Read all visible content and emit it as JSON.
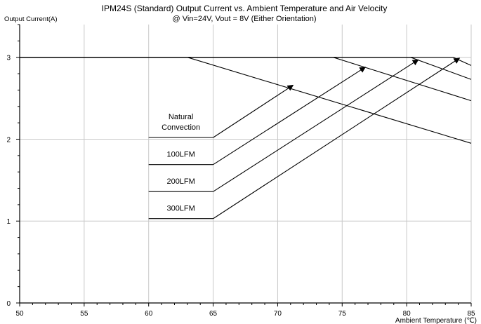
{
  "chart_data": {
    "type": "line",
    "title": "IPM24S (Standard) Output Current vs. Ambient Temperature and Air Velocity",
    "subtitle": "@ Vin=24V, Vout = 8V (Either Orientation)",
    "xlabel": "Ambient Temperature (℃)",
    "ylabel": "Output Current(A)",
    "xlim": [
      50,
      85
    ],
    "ylim": [
      0,
      3.4
    ],
    "xticks": [
      50,
      55,
      60,
      65,
      70,
      75,
      80,
      85
    ],
    "yticks": [
      0,
      1,
      2,
      3
    ],
    "grid": true,
    "series": [
      {
        "name": "Natural Convection",
        "x": [
          50,
          63,
          85
        ],
        "y": [
          3,
          3,
          1.95
        ]
      },
      {
        "name": "100LFM",
        "x": [
          50,
          74.3,
          85
        ],
        "y": [
          3,
          3,
          2.47
        ]
      },
      {
        "name": "200LFM",
        "x": [
          50,
          80.3,
          85
        ],
        "y": [
          3,
          3,
          2.73
        ]
      },
      {
        "name": "300LFM",
        "x": [
          50,
          83.6,
          85
        ],
        "y": [
          3,
          3,
          2.9
        ]
      }
    ],
    "annotations": [
      {
        "label": "Natural\nConvection",
        "from": [
          65,
          2.02
        ],
        "to": [
          71.2,
          2.66
        ]
      },
      {
        "label": "100LFM",
        "from": [
          65,
          1.69
        ],
        "to": [
          76.8,
          2.88
        ]
      },
      {
        "label": "200LFM",
        "from": [
          65,
          1.36
        ],
        "to": [
          80.9,
          2.97
        ]
      },
      {
        "label": "300LFM",
        "from": [
          65,
          1.03
        ],
        "to": [
          84.1,
          2.99
        ]
      }
    ]
  }
}
